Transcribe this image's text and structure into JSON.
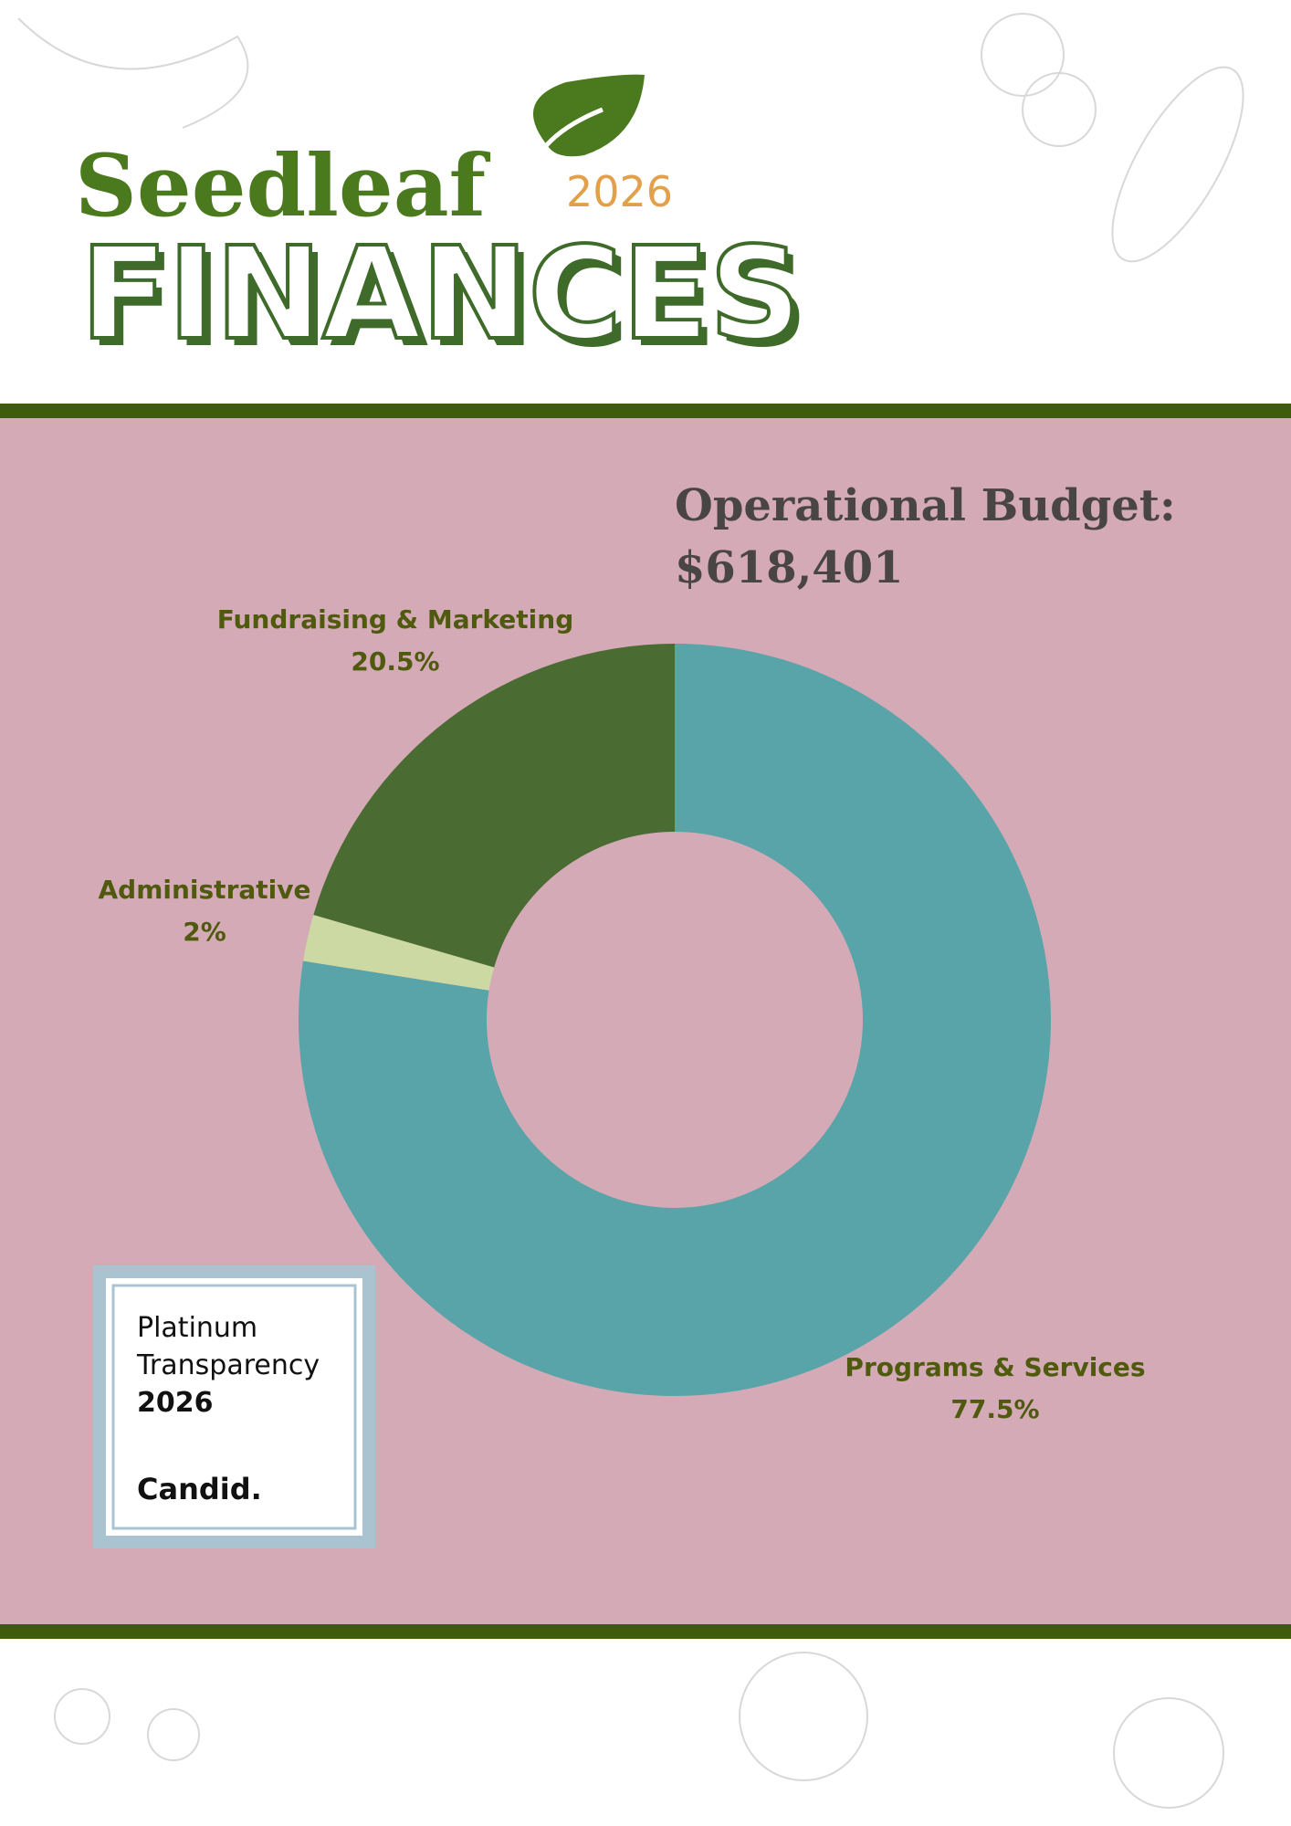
{
  "header": {
    "brand": "Seedleaf",
    "year": "2026",
    "title": "FINANCES"
  },
  "chart_data": {
    "type": "pie",
    "donut": true,
    "title": "Operational Budget:",
    "subtitle": "$618,401",
    "categories": [
      "Programs & Services",
      "Administrative",
      "Fundraising & Marketing"
    ],
    "values": [
      77.5,
      2,
      20.5
    ],
    "value_labels": [
      "77.5%",
      "2%",
      "20.5%"
    ],
    "colors": [
      "#58a4a8",
      "#ccd9a2",
      "#4a6b32"
    ]
  },
  "badge": {
    "line1": "Platinum",
    "line2": "Transparency",
    "year": "2026",
    "brand": "Candid."
  }
}
